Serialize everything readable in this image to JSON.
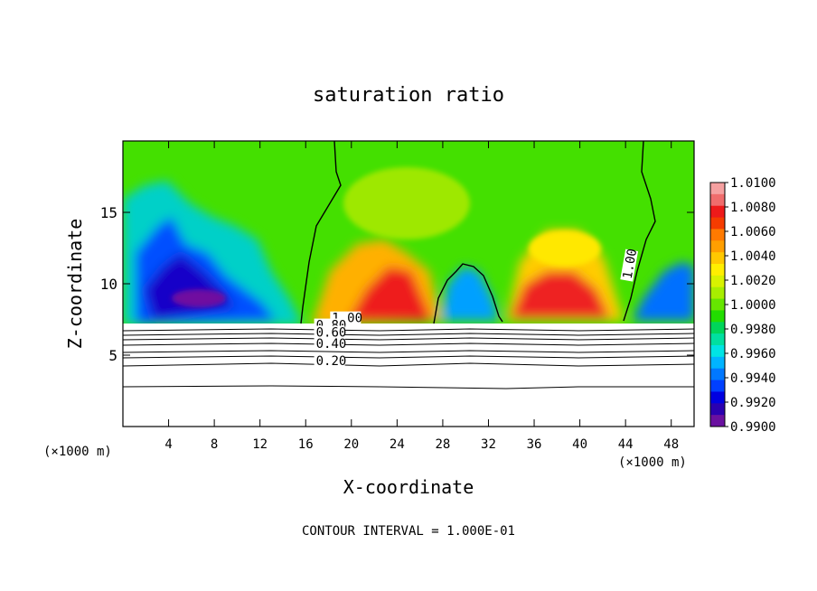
{
  "chart_data": {
    "type": "heatmap",
    "title": "saturation ratio",
    "xlabel": "X-coordinate",
    "ylabel": "Z-coordinate",
    "x_unit": "(×1000 m)",
    "x_unit_right": "(×1000 m)",
    "xlim": [
      0,
      50
    ],
    "ylim": [
      0,
      20
    ],
    "x_ticks": [
      4,
      8,
      12,
      16,
      20,
      24,
      28,
      32,
      36,
      40,
      44,
      48
    ],
    "y_ticks": [
      5,
      10,
      15
    ],
    "footer": "CONTOUR INTERVAL = 1.000E-01",
    "colorbar": {
      "min": 0.99,
      "max": 1.01,
      "labels": [
        "1.0100",
        "1.0080",
        "1.0060",
        "1.0040",
        "1.0020",
        "1.0000",
        "0.9980",
        "0.9960",
        "0.9940",
        "0.9920",
        "0.9900"
      ],
      "colors": [
        "#f5a0a0",
        "#f06c6c",
        "#ee1a1a",
        "#f53c00",
        "#ff7a00",
        "#ff9f00",
        "#ffc800",
        "#ffee00",
        "#d8f200",
        "#a8ee00",
        "#66e600",
        "#22dd00",
        "#00d65a",
        "#00e0a0",
        "#00e4e4",
        "#00b4ff",
        "#0078ff",
        "#0040ff",
        "#0000e0",
        "#2a00b0",
        "#6a10a0"
      ]
    },
    "contour_labels": [
      {
        "text": "1.00",
        "x": 18.3,
        "z": 7.3
      },
      {
        "text": "0.80",
        "x": 16.9,
        "z": 6.8
      },
      {
        "text": "0.60",
        "x": 16.9,
        "z": 6.3
      },
      {
        "text": "0.40",
        "x": 16.9,
        "z": 5.5
      },
      {
        "text": "0.20",
        "x": 16.9,
        "z": 4.3
      },
      {
        "text": "1.00",
        "x": 44.5,
        "z": 10.3
      }
    ]
  }
}
